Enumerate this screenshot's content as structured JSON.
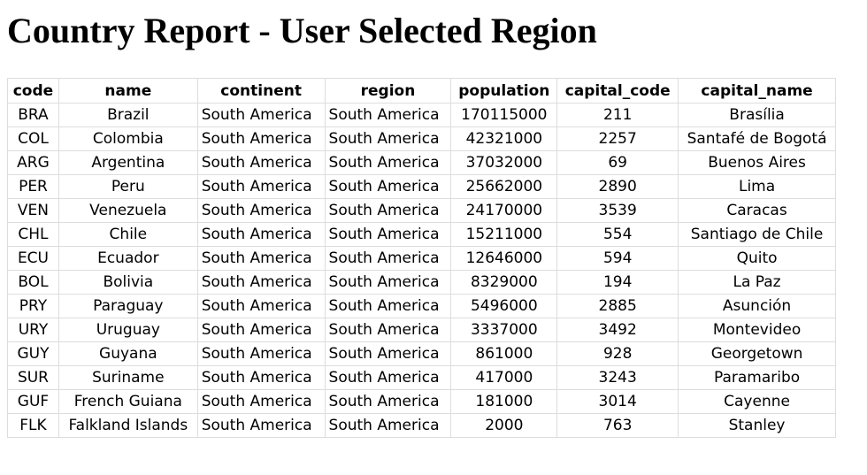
{
  "page": {
    "title": "Country Report - User Selected Region"
  },
  "table": {
    "columns": [
      "code",
      "name",
      "continent",
      "region",
      "population",
      "capital_code",
      "capital_name"
    ],
    "rows": [
      [
        "BRA",
        "Brazil",
        "South America",
        "South America",
        "170115000",
        "211",
        "Brasília"
      ],
      [
        "COL",
        "Colombia",
        "South America",
        "South America",
        "42321000",
        "2257",
        "Santafé de Bogotá"
      ],
      [
        "ARG",
        "Argentina",
        "South America",
        "South America",
        "37032000",
        "69",
        "Buenos Aires"
      ],
      [
        "PER",
        "Peru",
        "South America",
        "South America",
        "25662000",
        "2890",
        "Lima"
      ],
      [
        "VEN",
        "Venezuela",
        "South America",
        "South America",
        "24170000",
        "3539",
        "Caracas"
      ],
      [
        "CHL",
        "Chile",
        "South America",
        "South America",
        "15211000",
        "554",
        "Santiago de Chile"
      ],
      [
        "ECU",
        "Ecuador",
        "South America",
        "South America",
        "12646000",
        "594",
        "Quito"
      ],
      [
        "BOL",
        "Bolivia",
        "South America",
        "South America",
        "8329000",
        "194",
        "La Paz"
      ],
      [
        "PRY",
        "Paraguay",
        "South America",
        "South America",
        "5496000",
        "2885",
        "Asunción"
      ],
      [
        "URY",
        "Uruguay",
        "South America",
        "South America",
        "3337000",
        "3492",
        "Montevideo"
      ],
      [
        "GUY",
        "Guyana",
        "South America",
        "South America",
        "861000",
        "928",
        "Georgetown"
      ],
      [
        "SUR",
        "Suriname",
        "South America",
        "South America",
        "417000",
        "3243",
        "Paramaribo"
      ],
      [
        "GUF",
        "French Guiana",
        "South America",
        "South America",
        "181000",
        "3014",
        "Cayenne"
      ],
      [
        "FLK",
        "Falkland Islands",
        "South America",
        "South America",
        "2000",
        "763",
        "Stanley"
      ]
    ]
  }
}
